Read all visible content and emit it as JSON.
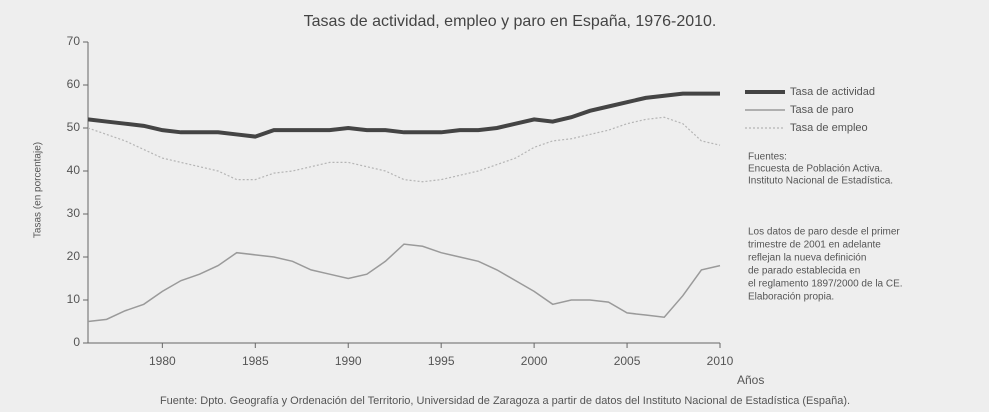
{
  "chart_data": {
    "type": "line",
    "title": "Tasas de actividad, empleo y paro en España, 1976-2010.",
    "ylabel": "Tasas (en porcentaje)",
    "xlabel": "Años",
    "x": [
      1976,
      1977,
      1978,
      1979,
      1980,
      1981,
      1982,
      1983,
      1984,
      1985,
      1986,
      1987,
      1988,
      1989,
      1990,
      1991,
      1992,
      1993,
      1994,
      1995,
      1996,
      1997,
      1998,
      1999,
      2000,
      2001,
      2002,
      2003,
      2004,
      2005,
      2006,
      2007,
      2008,
      2009,
      2010
    ],
    "xlim": [
      1976,
      2010
    ],
    "xticks": [
      1980,
      1985,
      1990,
      1995,
      2000,
      2005,
      2010
    ],
    "ylim": [
      0,
      70
    ],
    "yticks": [
      0,
      10,
      20,
      30,
      40,
      50,
      60,
      70
    ],
    "series": [
      {
        "name": "Tasa de actividad",
        "color": "#444444",
        "values": [
          52,
          51.5,
          51,
          50.5,
          49.5,
          49,
          49,
          49,
          48.5,
          48,
          49.5,
          49.5,
          49.5,
          49.5,
          50,
          49.5,
          49.5,
          49,
          49,
          49,
          49.5,
          49.5,
          50,
          51,
          52,
          51.5,
          52.5,
          54,
          55,
          56,
          57,
          57.5,
          58,
          58,
          58
        ]
      },
      {
        "name": "Tasa de paro",
        "color": "#9a9a9a",
        "values": [
          5,
          5.5,
          7.5,
          9,
          12,
          14.5,
          16,
          18,
          21,
          20.5,
          20,
          19,
          17,
          16,
          15,
          16,
          19,
          23,
          22.5,
          21,
          20,
          19,
          17,
          14.5,
          12,
          9,
          10,
          10,
          9.5,
          7,
          6.5,
          6,
          11,
          17,
          18
        ]
      },
      {
        "name": "Tasa de empleo",
        "color": "#b5b5b5",
        "values": [
          50,
          48.5,
          47,
          45,
          43,
          42,
          41,
          40,
          38,
          38,
          39.5,
          40,
          41,
          42,
          42,
          41,
          40,
          38,
          37.5,
          38,
          39,
          40,
          41.5,
          43,
          45.5,
          47,
          47.5,
          48.5,
          49.5,
          51,
          52,
          52.5,
          51,
          47,
          46
        ]
      }
    ],
    "sources": [
      "Fuentes:",
      "Encuesta de Población Activa.",
      "Instituto Nacional de Estadística."
    ],
    "note": [
      "Los datos de paro desde el primer",
      "trimestre de 2001 en adelante",
      "reflejan la nueva definición",
      "de parado establecida en",
      "el reglamento 1897/2000 de la CE.",
      "Elaboración propia."
    ],
    "footer": "Fuente: Dpto. Geografía y Ordenación del Territorio, Universidad de Zaragoza a partir de datos del Instituto Nacional de Estadística (España)."
  }
}
